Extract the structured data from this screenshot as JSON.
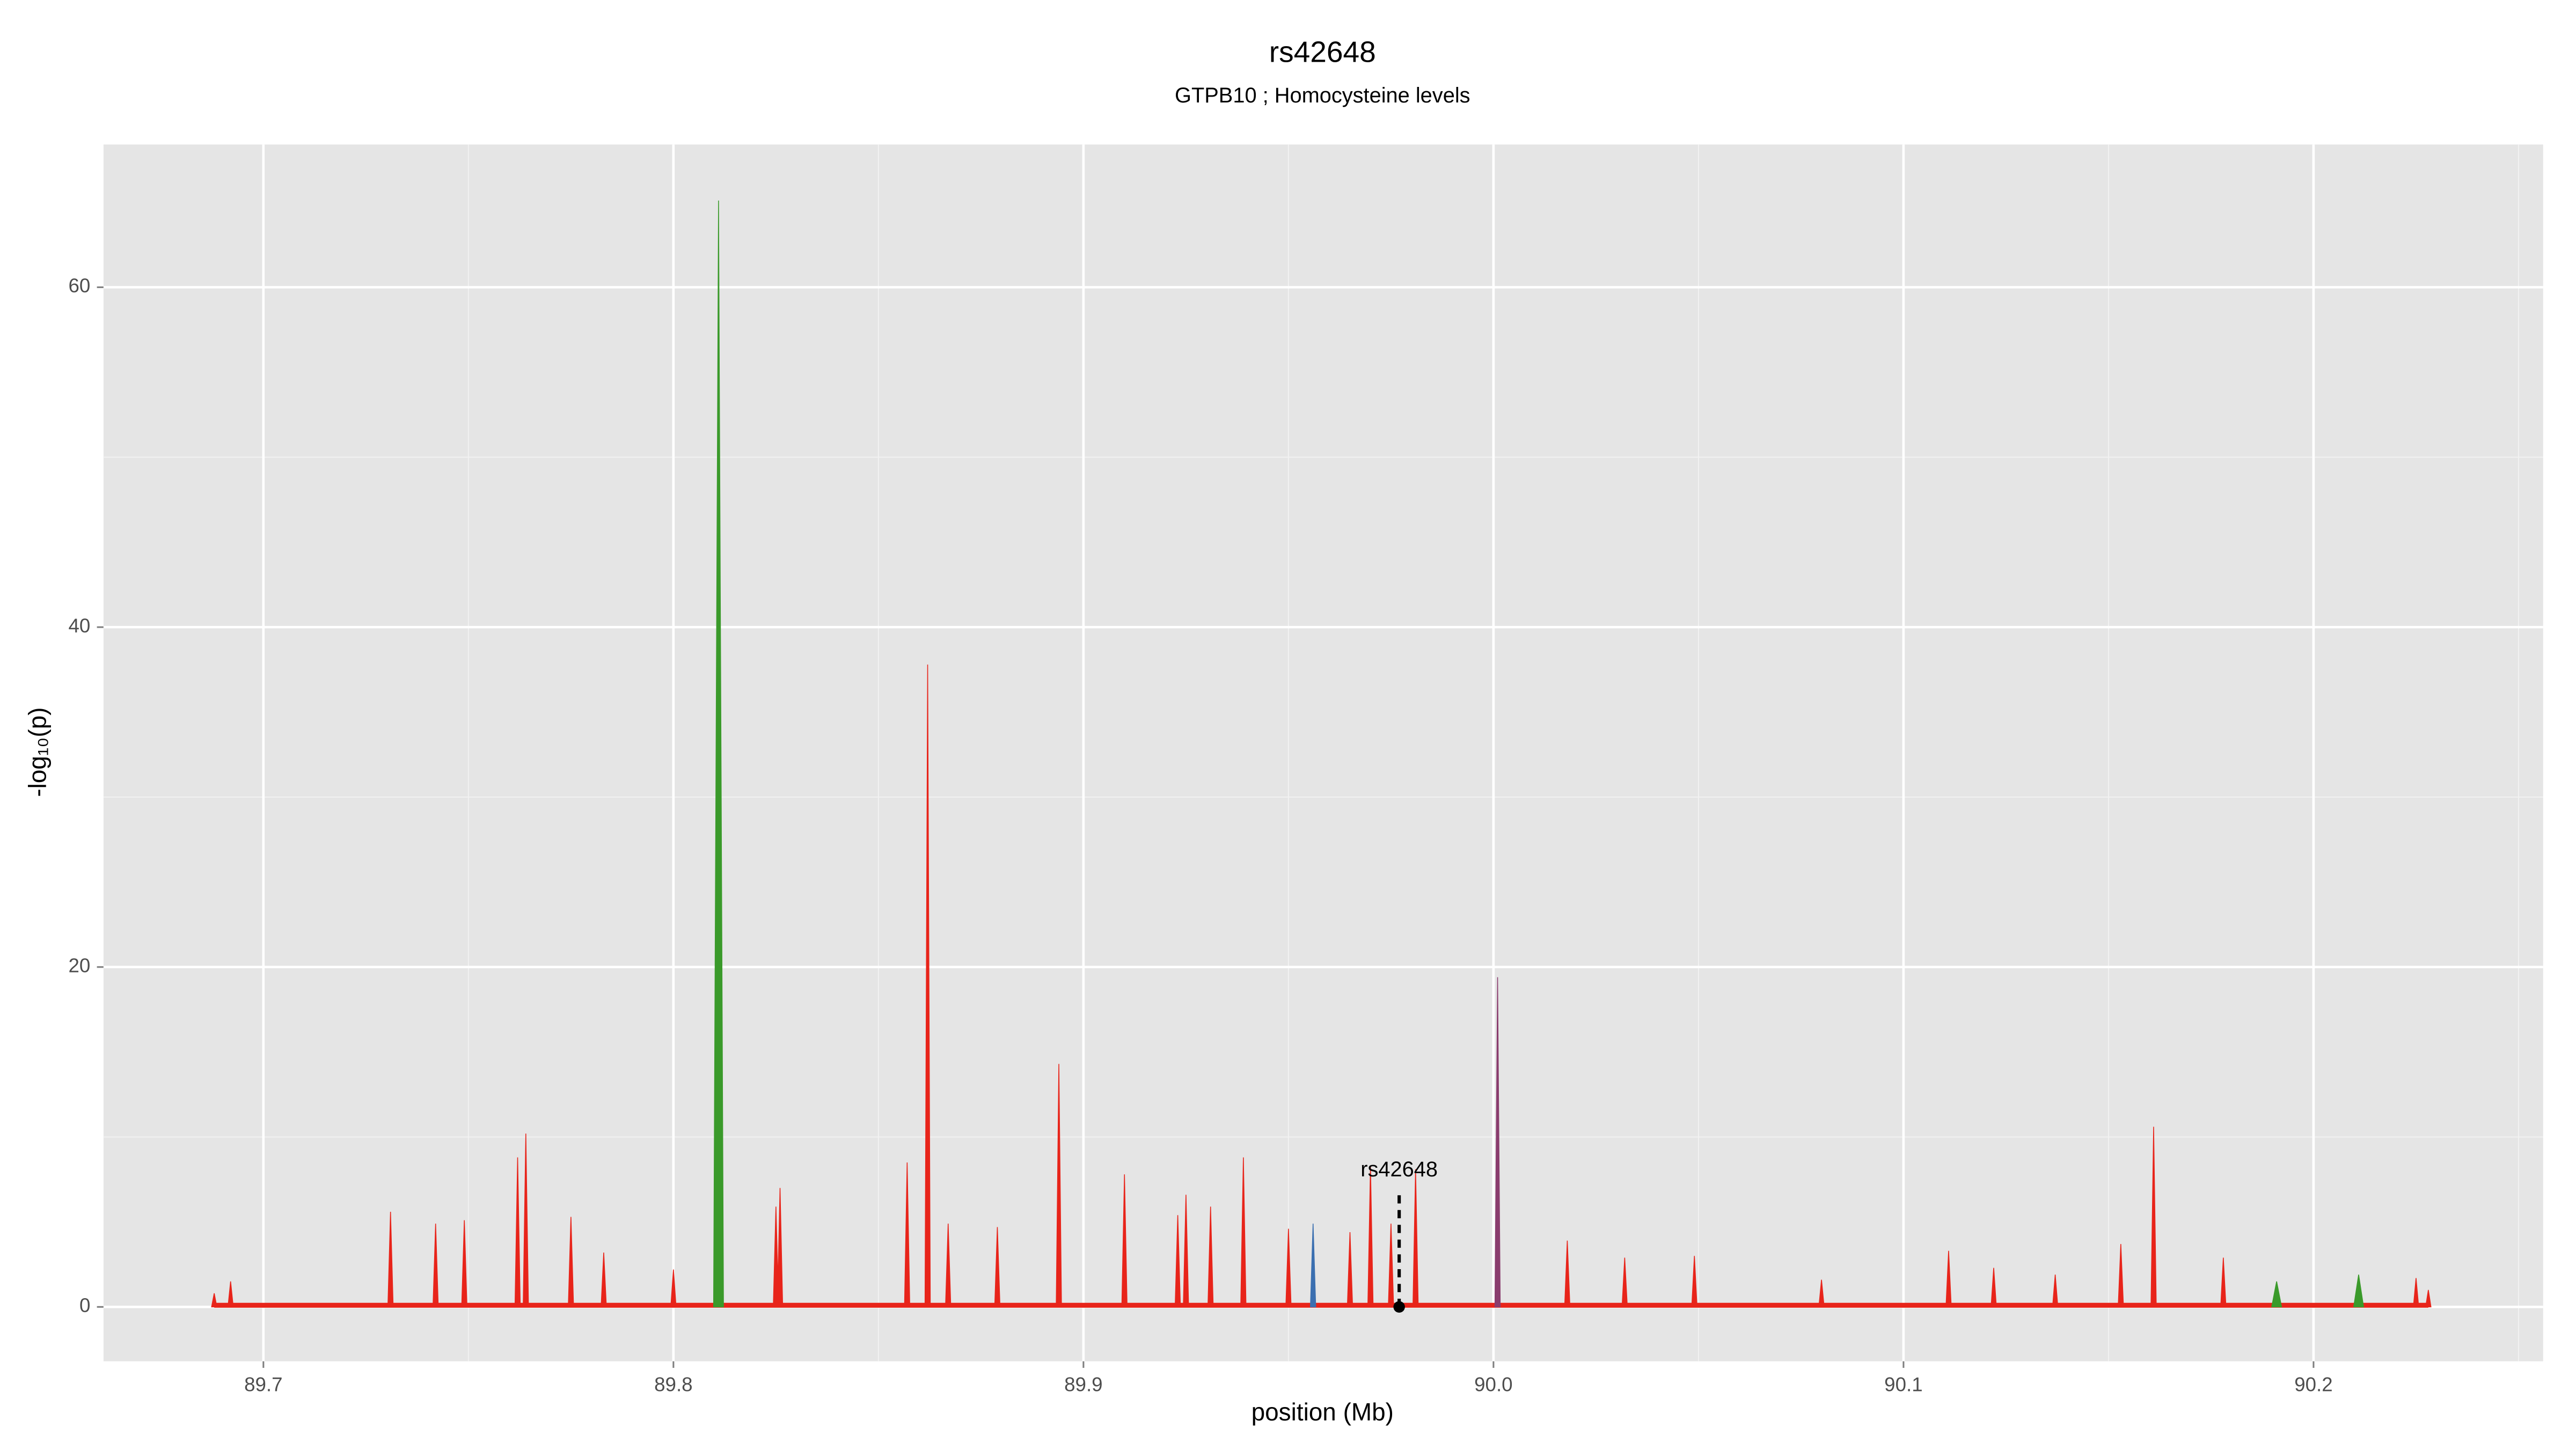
{
  "chart_data": {
    "type": "spike",
    "title": "rs42648",
    "subtitle": "GTPB10 ; Homocysteine levels",
    "xlabel": "position (Mb)",
    "ylabel": "-log₁₀(p)",
    "xlim": [
      89.661,
      90.256
    ],
    "ylim": [
      -3.2,
      68.4
    ],
    "xticks": [
      89.7,
      89.8,
      89.9,
      {
        "value": 90,
        "label": "90.0"
      },
      90.1,
      90.2
    ],
    "yticks": [
      0,
      20,
      40,
      60
    ],
    "grid": true,
    "series": [
      {
        "color": "#e8241a",
        "x": [
          89.688,
          89.692,
          89.731,
          89.742,
          89.749,
          89.762,
          89.764,
          89.775,
          89.783,
          89.8,
          89.825,
          89.826,
          89.857,
          89.862,
          89.867,
          89.879,
          89.894,
          89.91,
          89.923,
          89.925,
          89.931,
          89.939,
          89.95,
          89.965,
          89.97,
          89.975,
          89.981,
          90.018,
          90.032,
          90.049,
          90.08,
          90.111,
          90.122,
          90.137,
          90.153,
          90.161,
          90.178,
          90.225,
          90.228
        ],
        "values": [
          0.8,
          1.5,
          5.6,
          4.9,
          5.1,
          8.8,
          10.2,
          5.3,
          3.2,
          2.2,
          5.9,
          7,
          8.5,
          37.8,
          4.9,
          4.7,
          14.3,
          7.8,
          5.4,
          6.6,
          5.9,
          8.8,
          4.6,
          4.4,
          8.3,
          4.9,
          8.1,
          3.9,
          2.9,
          3,
          1.6,
          3.3,
          2.3,
          1.9,
          3.7,
          10.6,
          2.9,
          1.7,
          1
        ]
      },
      {
        "color": "#3a9a2a",
        "x": [
          89.811,
          90.191,
          90.211
        ],
        "values": [
          65.1,
          1.5,
          1.9
        ]
      },
      {
        "color": "#8a3d6e",
        "x": [
          90.001
        ],
        "values": [
          19.4
        ]
      },
      {
        "color": "#3b6fb0",
        "x": [
          89.956
        ],
        "values": [
          4.9
        ]
      }
    ],
    "annotation": {
      "label": "rs42648",
      "x": 89.977,
      "y": 0
    }
  }
}
